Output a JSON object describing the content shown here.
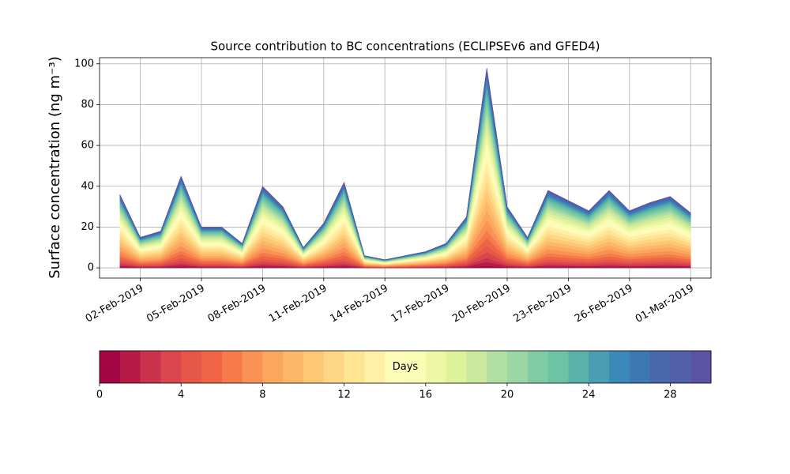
{
  "chart_data": {
    "type": "stackplot",
    "title": "Source contribution to BC concentrations (ECLIPSEv6 and GFED4)",
    "y_label": "Surface concentration (ng m⁻³)",
    "x": [
      "2019-02-01",
      "2019-02-02",
      "2019-02-03",
      "2019-02-04",
      "2019-02-05",
      "2019-02-06",
      "2019-02-07",
      "2019-02-08",
      "2019-02-09",
      "2019-02-10",
      "2019-02-11",
      "2019-02-12",
      "2019-02-13",
      "2019-02-14",
      "2019-02-15",
      "2019-02-16",
      "2019-02-17",
      "2019-02-18",
      "2019-02-19",
      "2019-02-20",
      "2019-02-21",
      "2019-02-22",
      "2019-02-23",
      "2019-02-24",
      "2019-02-25",
      "2019-02-26",
      "2019-02-27",
      "2019-02-28",
      "2019-03-01"
    ],
    "xlim": [
      "2019-01-31",
      "2019-03-02"
    ],
    "xticks": [
      {
        "value": "2019-02-02",
        "label": "02-Feb-2019"
      },
      {
        "value": "2019-02-05",
        "label": "05-Feb-2019"
      },
      {
        "value": "2019-02-08",
        "label": "08-Feb-2019"
      },
      {
        "value": "2019-02-11",
        "label": "11-Feb-2019"
      },
      {
        "value": "2019-02-14",
        "label": "14-Feb-2019"
      },
      {
        "value": "2019-02-17",
        "label": "17-Feb-2019"
      },
      {
        "value": "2019-02-20",
        "label": "20-Feb-2019"
      },
      {
        "value": "2019-02-23",
        "label": "23-Feb-2019"
      },
      {
        "value": "2019-02-26",
        "label": "26-Feb-2019"
      },
      {
        "value": "2019-03-01",
        "label": "01-Mar-2019"
      }
    ],
    "ylim": [
      -5,
      103
    ],
    "yticks": [
      0,
      20,
      40,
      60,
      80,
      100
    ],
    "grid": true,
    "colorbar": {
      "label": "Days",
      "lim": [
        0,
        30
      ],
      "ticks": [
        0,
        4,
        8,
        12,
        16,
        20,
        24,
        28
      ]
    },
    "series": [
      {
        "color": "#a20643",
        "values": [
          0.36,
          0.15,
          0.18,
          0.45,
          0.2,
          0.2,
          0.12,
          0.4,
          0.3,
          0.1,
          0.22,
          0.42,
          0.06,
          0.04,
          0.06,
          0.08,
          0.12,
          0.25,
          0.98,
          0.3,
          0.15,
          0.38,
          0.33,
          0.28,
          0.38,
          0.28,
          0.32,
          0.35,
          0.27
        ]
      },
      {
        "color": "#b71a47",
        "values": [
          0.72,
          0.3,
          0.36,
          0.9,
          0.4,
          0.4,
          0.24,
          0.8,
          0.6,
          0.2,
          0.44,
          0.84,
          0.12,
          0.08,
          0.12,
          0.16,
          0.24,
          0.5,
          1.96,
          0.6,
          0.3,
          0.76,
          0.66,
          0.56,
          0.76,
          0.56,
          0.64,
          0.7,
          0.54
        ]
      },
      {
        "color": "#cb334c",
        "values": [
          0.72,
          0.3,
          0.36,
          0.9,
          0.4,
          0.4,
          0.24,
          0.8,
          0.6,
          0.2,
          0.44,
          0.84,
          0.12,
          0.08,
          0.12,
          0.16,
          0.24,
          0.5,
          1.96,
          0.6,
          0.3,
          0.76,
          0.66,
          0.56,
          0.76,
          0.56,
          0.64,
          0.7,
          0.54
        ]
      },
      {
        "color": "#da464d",
        "values": [
          1.08,
          0.45,
          0.54,
          1.35,
          0.6,
          0.6,
          0.36,
          1.2,
          0.9,
          0.3,
          0.66,
          1.26,
          0.18,
          0.12,
          0.18,
          0.24,
          0.36,
          0.75,
          2.94,
          0.9,
          0.45,
          1.14,
          0.99,
          0.84,
          1.14,
          0.84,
          0.96,
          1.05,
          0.81
        ]
      },
      {
        "color": "#e55749",
        "values": [
          1.08,
          0.45,
          0.54,
          1.35,
          0.6,
          0.6,
          0.36,
          1.2,
          0.9,
          0.3,
          0.66,
          1.26,
          0.18,
          0.12,
          0.18,
          0.24,
          0.36,
          0.75,
          2.94,
          0.9,
          0.45,
          1.14,
          0.99,
          0.84,
          1.14,
          0.84,
          0.96,
          1.05,
          0.81
        ]
      },
      {
        "color": "#ee6445",
        "values": [
          1.44,
          0.6,
          0.72,
          1.8,
          0.8,
          0.8,
          0.48,
          1.6,
          1.2,
          0.4,
          0.88,
          1.68,
          0.24,
          0.16,
          0.24,
          0.32,
          0.48,
          1,
          3.92,
          1.2,
          0.6,
          1.52,
          1.32,
          1.12,
          1.52,
          1.12,
          1.28,
          1.4,
          1.08
        ]
      },
      {
        "color": "#f67b4a",
        "values": [
          1.44,
          0.6,
          0.72,
          1.8,
          0.8,
          0.8,
          0.48,
          1.6,
          1.2,
          0.4,
          0.88,
          1.68,
          0.24,
          0.16,
          0.24,
          0.32,
          0.48,
          1,
          3.92,
          1.2,
          0.6,
          1.52,
          1.32,
          1.12,
          1.52,
          1.12,
          1.28,
          1.4,
          1.08
        ]
      },
      {
        "color": "#f99254",
        "values": [
          1.8,
          0.75,
          0.9,
          2.25,
          1,
          1,
          0.6,
          2,
          1.5,
          0.5,
          1.1,
          2.1,
          0.3,
          0.2,
          0.3,
          0.4,
          0.6,
          1.25,
          4.9,
          1.5,
          0.75,
          1.9,
          1.65,
          1.4,
          1.9,
          1.4,
          1.6,
          1.75,
          1.35
        ]
      },
      {
        "color": "#fca75f",
        "values": [
          1.8,
          0.75,
          0.9,
          2.25,
          1,
          1,
          0.6,
          2,
          1.5,
          0.5,
          1.1,
          2.1,
          0.3,
          0.2,
          0.3,
          0.4,
          0.6,
          1.25,
          4.9,
          1.5,
          0.75,
          1.9,
          1.65,
          1.4,
          1.9,
          1.4,
          1.6,
          1.75,
          1.35
        ]
      },
      {
        "color": "#fdb768",
        "values": [
          1.8,
          0.75,
          0.9,
          2.25,
          1,
          1,
          0.6,
          2,
          1.5,
          0.5,
          1.1,
          2.1,
          0.3,
          0.2,
          0.3,
          0.4,
          0.6,
          1.25,
          4.9,
          1.5,
          0.75,
          1.9,
          1.65,
          1.4,
          1.9,
          1.4,
          1.6,
          1.75,
          1.35
        ]
      },
      {
        "color": "#fdc776",
        "values": [
          1.8,
          0.75,
          0.9,
          2.25,
          1,
          1,
          0.6,
          2,
          1.5,
          0.5,
          1.1,
          2.1,
          0.3,
          0.2,
          0.3,
          0.4,
          0.6,
          1.25,
          4.9,
          1.5,
          0.75,
          1.9,
          1.65,
          1.4,
          1.9,
          1.4,
          1.6,
          1.75,
          1.35
        ]
      },
      {
        "color": "#fed685",
        "values": [
          1.8,
          0.75,
          0.9,
          2.25,
          1,
          1,
          0.6,
          2,
          1.5,
          0.5,
          1.1,
          2.1,
          0.3,
          0.2,
          0.3,
          0.4,
          0.6,
          1.25,
          4.9,
          1.5,
          0.75,
          1.9,
          1.65,
          1.4,
          1.9,
          1.4,
          1.6,
          1.75,
          1.35
        ]
      },
      {
        "color": "#fee593",
        "values": [
          1.8,
          0.75,
          0.9,
          2.25,
          1,
          1,
          0.6,
          2,
          1.5,
          0.5,
          1.1,
          2.1,
          0.3,
          0.2,
          0.3,
          0.4,
          0.6,
          1.25,
          4.9,
          1.5,
          0.75,
          1.9,
          1.65,
          1.4,
          1.9,
          1.4,
          1.6,
          1.75,
          1.35
        ]
      },
      {
        "color": "#fff0a6",
        "values": [
          1.8,
          0.75,
          0.9,
          2.25,
          1,
          1,
          0.6,
          2,
          1.5,
          0.5,
          1.1,
          2.1,
          0.3,
          0.2,
          0.3,
          0.4,
          0.6,
          1.25,
          4.9,
          1.5,
          0.75,
          1.9,
          1.65,
          1.4,
          1.9,
          1.4,
          1.6,
          1.75,
          1.35
        ]
      },
      {
        "color": "#fffbb9",
        "values": [
          1.8,
          0.75,
          0.9,
          2.25,
          1,
          1,
          0.6,
          2,
          1.5,
          0.5,
          1.1,
          2.1,
          0.3,
          0.2,
          0.3,
          0.4,
          0.6,
          1.25,
          4.9,
          1.5,
          0.75,
          1.9,
          1.65,
          1.4,
          1.9,
          1.4,
          1.6,
          1.75,
          1.35
        ]
      },
      {
        "color": "#f8fcb4",
        "values": [
          1.44,
          0.6,
          0.72,
          1.8,
          0.8,
          0.8,
          0.48,
          1.6,
          1.2,
          0.4,
          0.88,
          1.68,
          0.24,
          0.16,
          0.24,
          0.32,
          0.48,
          1,
          3.92,
          1.2,
          0.6,
          1.52,
          1.32,
          1.12,
          1.52,
          1.12,
          1.28,
          1.4,
          1.08
        ]
      },
      {
        "color": "#eef8a4",
        "values": [
          1.44,
          0.6,
          0.72,
          1.8,
          0.8,
          0.8,
          0.48,
          1.6,
          1.2,
          0.4,
          0.88,
          1.68,
          0.24,
          0.16,
          0.24,
          0.32,
          0.48,
          1,
          3.92,
          1.2,
          0.6,
          1.52,
          1.32,
          1.12,
          1.52,
          1.12,
          1.28,
          1.4,
          1.08
        ]
      },
      {
        "color": "#def29a",
        "values": [
          1.44,
          0.6,
          0.72,
          1.8,
          0.8,
          0.8,
          0.48,
          1.6,
          1.2,
          0.4,
          0.88,
          1.68,
          0.24,
          0.16,
          0.24,
          0.32,
          0.48,
          1,
          3.92,
          1.2,
          0.6,
          1.52,
          1.32,
          1.12,
          1.52,
          1.12,
          1.28,
          1.4,
          1.08
        ]
      },
      {
        "color": "#c9e99e",
        "values": [
          1.44,
          0.6,
          0.72,
          1.8,
          0.8,
          0.8,
          0.48,
          1.6,
          1.2,
          0.4,
          0.88,
          1.68,
          0.24,
          0.16,
          0.24,
          0.32,
          0.48,
          1,
          3.92,
          1.2,
          0.6,
          1.52,
          1.32,
          1.12,
          1.52,
          1.12,
          1.28,
          1.4,
          1.08
        ]
      },
      {
        "color": "#b2e0a2",
        "values": [
          1.08,
          0.45,
          0.54,
          1.35,
          0.6,
          0.6,
          0.36,
          1.2,
          0.9,
          0.3,
          0.66,
          1.26,
          0.18,
          0.12,
          0.18,
          0.24,
          0.36,
          0.75,
          2.94,
          0.9,
          0.45,
          1.14,
          0.99,
          0.84,
          1.14,
          0.84,
          0.96,
          1.05,
          0.81
        ]
      },
      {
        "color": "#9cd6a4",
        "values": [
          1.08,
          0.45,
          0.54,
          1.35,
          0.6,
          0.6,
          0.36,
          1.2,
          0.9,
          0.3,
          0.66,
          1.26,
          0.18,
          0.12,
          0.18,
          0.24,
          0.36,
          0.75,
          2.94,
          0.9,
          0.45,
          1.14,
          0.99,
          0.84,
          1.14,
          0.84,
          0.96,
          1.05,
          0.81
        ]
      },
      {
        "color": "#81cca5",
        "values": [
          1.08,
          0.45,
          0.54,
          1.35,
          0.6,
          0.6,
          0.36,
          1.2,
          0.9,
          0.3,
          0.66,
          1.26,
          0.18,
          0.12,
          0.18,
          0.24,
          0.36,
          0.75,
          2.94,
          0.9,
          0.45,
          1.14,
          0.99,
          0.84,
          1.14,
          0.84,
          0.96,
          1.05,
          0.81
        ]
      },
      {
        "color": "#6dc4a5",
        "values": [
          1.08,
          0.45,
          0.54,
          1.35,
          0.6,
          0.6,
          0.36,
          1.2,
          0.9,
          0.3,
          0.66,
          1.26,
          0.18,
          0.12,
          0.18,
          0.24,
          0.36,
          0.75,
          2.94,
          0.9,
          0.45,
          1.14,
          0.99,
          0.84,
          1.14,
          0.84,
          0.96,
          1.05,
          0.81
        ]
      },
      {
        "color": "#5ab1a9",
        "values": [
          1.08,
          0.45,
          0.54,
          1.35,
          0.6,
          0.6,
          0.36,
          1.2,
          0.9,
          0.3,
          0.66,
          1.26,
          0.18,
          0.12,
          0.18,
          0.24,
          0.36,
          0.75,
          2.94,
          0.9,
          0.45,
          1.14,
          0.99,
          0.84,
          1.14,
          0.84,
          0.96,
          1.05,
          0.81
        ]
      },
      {
        "color": "#4b9eb1",
        "values": [
          0.72,
          0.3,
          0.36,
          0.9,
          0.4,
          0.4,
          0.24,
          0.8,
          0.6,
          0.2,
          0.44,
          0.84,
          0.12,
          0.08,
          0.12,
          0.16,
          0.24,
          0.5,
          1.96,
          0.6,
          0.3,
          0.76,
          0.66,
          0.56,
          0.76,
          0.56,
          0.64,
          0.7,
          0.54
        ]
      },
      {
        "color": "#3a8ab9",
        "values": [
          0.72,
          0.3,
          0.36,
          0.9,
          0.4,
          0.4,
          0.24,
          0.8,
          0.6,
          0.2,
          0.44,
          0.84,
          0.12,
          0.08,
          0.12,
          0.16,
          0.24,
          0.5,
          1.96,
          0.6,
          0.3,
          0.76,
          0.66,
          0.56,
          0.76,
          0.56,
          0.64,
          0.7,
          0.54
        ]
      },
      {
        "color": "#3d78b5",
        "values": [
          0.72,
          0.3,
          0.36,
          0.9,
          0.4,
          0.4,
          0.24,
          0.8,
          0.6,
          0.2,
          0.44,
          0.84,
          0.12,
          0.08,
          0.12,
          0.16,
          0.24,
          0.5,
          1.96,
          0.6,
          0.3,
          0.76,
          0.66,
          0.56,
          0.76,
          0.56,
          0.64,
          0.7,
          0.54
        ]
      },
      {
        "color": "#4a66ad",
        "values": [
          0.72,
          0.3,
          0.36,
          0.9,
          0.4,
          0.4,
          0.24,
          0.8,
          0.6,
          0.2,
          0.44,
          0.84,
          0.12,
          0.08,
          0.12,
          0.16,
          0.24,
          0.5,
          1.96,
          0.6,
          0.3,
          0.76,
          0.66,
          0.56,
          0.76,
          0.56,
          0.64,
          0.7,
          0.54
        ]
      },
      {
        "color": "#5160a9",
        "values": [
          0.36,
          0.15,
          0.18,
          0.45,
          0.2,
          0.2,
          0.12,
          0.4,
          0.3,
          0.1,
          0.22,
          0.42,
          0.06,
          0.04,
          0.06,
          0.08,
          0.12,
          0.25,
          0.98,
          0.3,
          0.15,
          0.38,
          0.33,
          0.28,
          0.38,
          0.28,
          0.32,
          0.35,
          0.27
        ]
      },
      {
        "color": "#5a53a4",
        "values": [
          0.36,
          0.15,
          0.18,
          0.45,
          0.2,
          0.2,
          0.12,
          0.4,
          0.3,
          0.1,
          0.22,
          0.42,
          0.06,
          0.04,
          0.06,
          0.08,
          0.12,
          0.25,
          0.98,
          0.3,
          0.15,
          0.38,
          0.33,
          0.28,
          0.38,
          0.28,
          0.32,
          0.35,
          0.27
        ]
      }
    ]
  }
}
